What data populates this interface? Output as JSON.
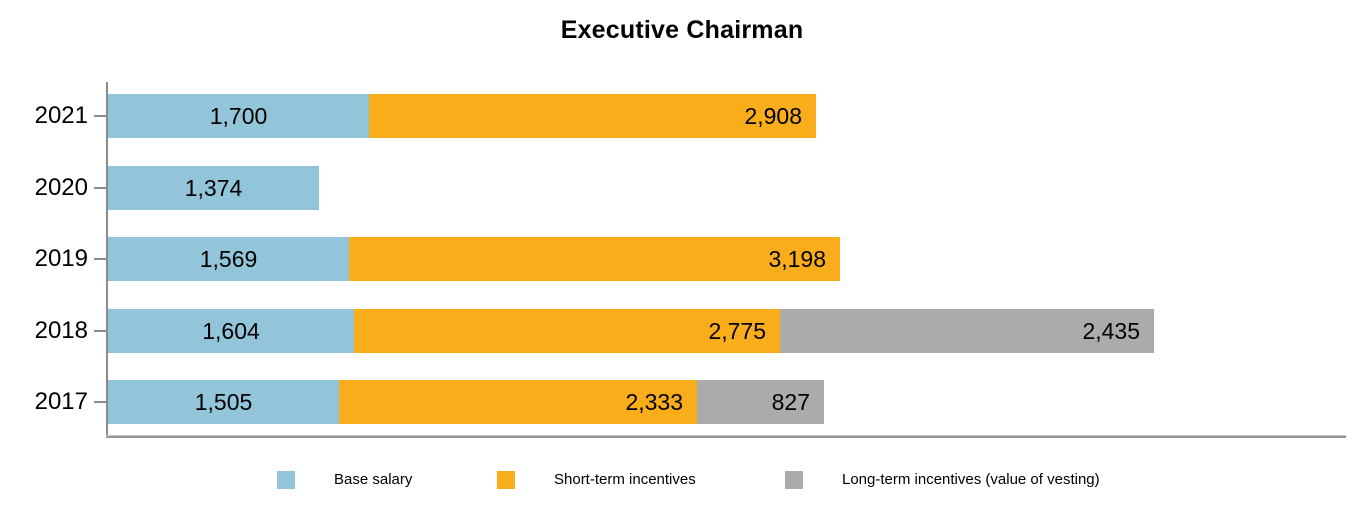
{
  "title": "Executive Chairman",
  "colors": {
    "base_salary": "#92C5D9",
    "short_term_incentives": "#F9AD1B",
    "long_term_incentives": "#ABABAB",
    "axis": "#8C8C8C",
    "text": "#000000"
  },
  "chart_data": {
    "type": "bar",
    "orientation": "horizontal",
    "stacked": true,
    "title": "Executive Chairman",
    "categories": [
      "2021",
      "2020",
      "2019",
      "2018",
      "2017"
    ],
    "series": [
      {
        "name": "Base salary",
        "color": "#92C5D9",
        "values": [
          1700,
          1374,
          1569,
          1604,
          1505
        ],
        "labels": [
          "1,700",
          "1,374",
          "1,569",
          "1,604",
          "1,505"
        ]
      },
      {
        "name": "Short-term incentives",
        "color": "#F9AD1B",
        "values": [
          2908,
          null,
          3198,
          2775,
          2333
        ],
        "labels": [
          "2,908",
          "",
          "3,198",
          "2,775",
          "2,333"
        ]
      },
      {
        "name": "Long-term incentives (value of vesting)",
        "color": "#ABABAB",
        "values": [
          null,
          null,
          null,
          2435,
          827
        ],
        "labels": [
          "",
          "",
          "",
          "2,435",
          "827"
        ]
      }
    ],
    "totals": [
      4608,
      1374,
      4767,
      6814,
      4665
    ],
    "xlim": [
      0,
      8000
    ],
    "grid": false,
    "legend_position": "bottom"
  }
}
